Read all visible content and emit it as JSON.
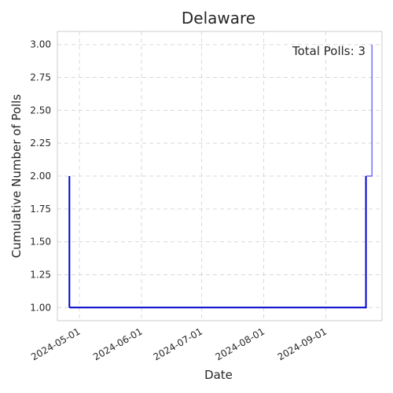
{
  "chart_data": {
    "type": "line",
    "drawstyle": "steps-post",
    "title": "Delaware",
    "xlabel": "Date",
    "ylabel": "Cumulative Number of Polls",
    "annotation": "Total Polls: 3",
    "line_color": "#0000cc",
    "x_type": "date",
    "xlim": [
      "2024-04-20",
      "2024-09-29"
    ],
    "ylim": [
      0.9,
      3.1
    ],
    "grid": true,
    "x_ticks": [
      "2024-05-01",
      "2024-06-01",
      "2024-07-01",
      "2024-08-01",
      "2024-09-01"
    ],
    "y_ticks": [
      1.0,
      1.25,
      1.5,
      1.75,
      2.0,
      2.25,
      2.5,
      2.75,
      3.0
    ],
    "y_tick_labels": [
      "1.00",
      "1.25",
      "1.50",
      "1.75",
      "2.00",
      "2.25",
      "2.50",
      "2.75",
      "3.00"
    ],
    "series": [
      {
        "x": [
          "2024-04-26",
          "2024-09-21"
        ],
        "y": [
          1,
          2
        ]
      },
      {
        "x": [
          "2024-09-21",
          "2024-09-24"
        ],
        "y": [
          2,
          3
        ]
      }
    ]
  }
}
